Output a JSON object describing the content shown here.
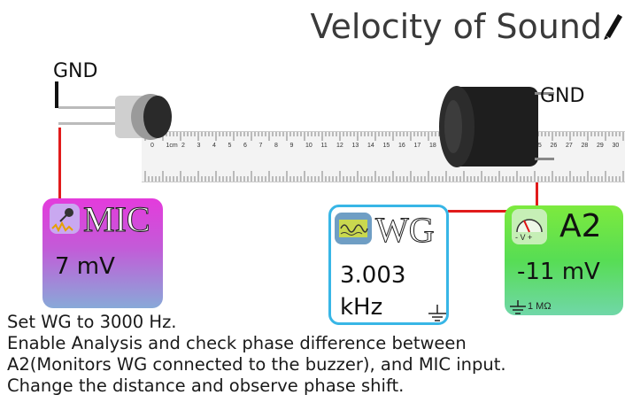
{
  "title": "Velocity of Sound",
  "gnd_left_label": "GND",
  "gnd_right_label": "GND",
  "ruler": {
    "top_ticks": [
      "0",
      "1cm",
      "2",
      "3",
      "4",
      "5",
      "6",
      "7",
      "8",
      "9",
      "10",
      "11",
      "12",
      "13",
      "14",
      "15",
      "16",
      "17",
      "18",
      "25",
      "26",
      "27",
      "28",
      "29",
      "30"
    ]
  },
  "mic": {
    "name": "MIC",
    "value": "7 mV"
  },
  "wg": {
    "name": "WG",
    "value_line1": "3.003",
    "value_line2": "kHz"
  },
  "a2": {
    "name": "A2",
    "meter_label": "- V +",
    "value": "-11 mV",
    "resistance": "1 MΩ"
  },
  "instructions": [
    "Set WG to 3000 Hz.",
    "Enable Analysis and check phase difference between",
    "A2(Monitors WG connected to the buzzer), and MIC input.",
    "Change the distance and observe phase shift."
  ],
  "colors": {
    "wire": "#e11b1b",
    "wg_border": "#38b6e6"
  }
}
